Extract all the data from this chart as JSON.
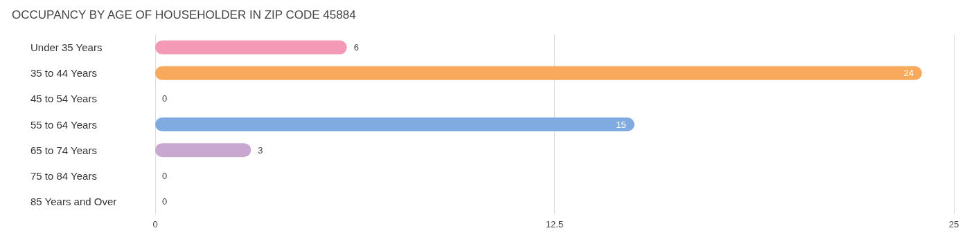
{
  "chart_data": {
    "type": "bar",
    "orientation": "horizontal",
    "title": "OCCUPANCY BY AGE OF HOUSEHOLDER IN ZIP CODE 45884",
    "categories": [
      "Under 35 Years",
      "35 to 44 Years",
      "45 to 54 Years",
      "55 to 64 Years",
      "65 to 74 Years",
      "75 to 84 Years",
      "85 Years and Over"
    ],
    "values": [
      6,
      24,
      0,
      15,
      3,
      0,
      0
    ],
    "colors": [
      "#f49ab7",
      "#f9a95b",
      "#f2b2a8",
      "#7fabe0",
      "#c8a7d0",
      "#7fcdd2",
      "#b3b8ee"
    ],
    "xlim": [
      0,
      25
    ],
    "xticks": [
      0,
      12.5,
      25
    ],
    "grid": "x",
    "data_labels": true
  }
}
